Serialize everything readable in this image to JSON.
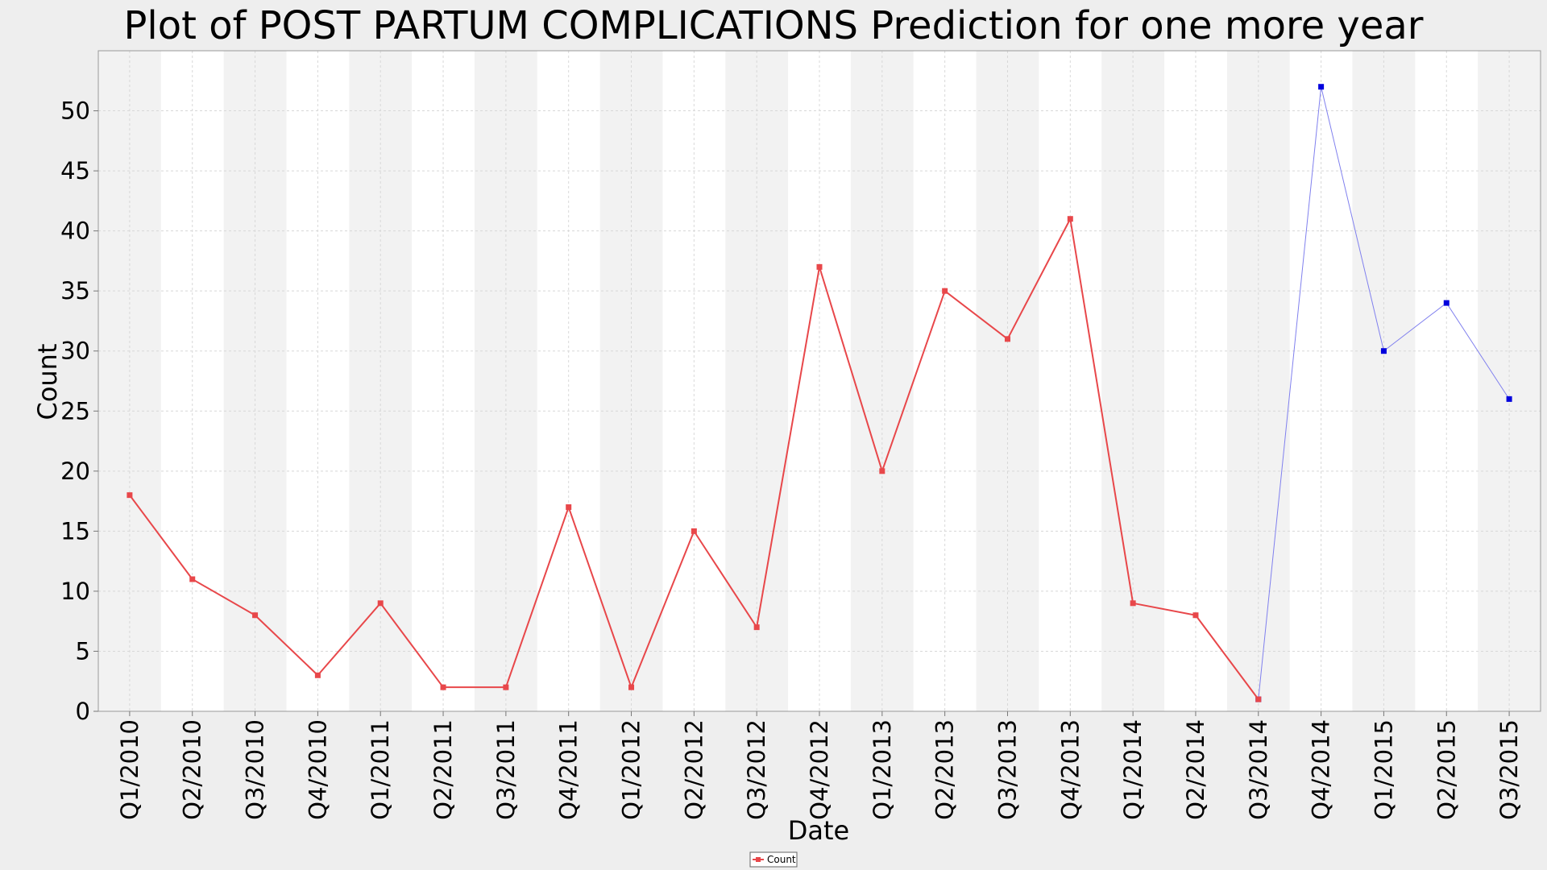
{
  "chart_data": {
    "type": "line",
    "title": "Plot of POST PARTUM COMPLICATIONS Prediction for one more year",
    "xlabel": "Date",
    "ylabel": "Count",
    "ylim": [
      0,
      55
    ],
    "yticks": [
      0,
      5,
      10,
      15,
      20,
      25,
      30,
      35,
      40,
      45,
      50
    ],
    "grid": true,
    "legend_position": "bottom-center",
    "categories": [
      "Q1/2010",
      "Q2/2010",
      "Q3/2010",
      "Q4/2010",
      "Q1/2011",
      "Q2/2011",
      "Q3/2011",
      "Q4/2011",
      "Q1/2012",
      "Q2/2012",
      "Q3/2012",
      "Q4/2012",
      "Q1/2013",
      "Q2/2013",
      "Q3/2013",
      "Q4/2013",
      "Q1/2014",
      "Q2/2014",
      "Q3/2014",
      "Q4/2014",
      "Q1/2015",
      "Q2/2015",
      "Q3/2015"
    ],
    "series": [
      {
        "name": "Count",
        "color": "#e8474a",
        "values": [
          18,
          11,
          8,
          3,
          9,
          2,
          2,
          17,
          2,
          15,
          7,
          37,
          20,
          35,
          31,
          41,
          9,
          8,
          1,
          null,
          null,
          null,
          null
        ]
      },
      {
        "color": "#0000dd",
        "values": [
          null,
          null,
          null,
          null,
          null,
          null,
          null,
          null,
          null,
          null,
          null,
          null,
          null,
          null,
          null,
          null,
          null,
          null,
          1,
          52,
          30,
          34,
          26
        ]
      }
    ],
    "colors": {
      "band_dark": "#f2f2f2",
      "band_light": "#ffffff",
      "grid": "#d8d8d8",
      "observed": "#e8474a",
      "predicted_line": "#8080ee",
      "predicted_marker": "#0000dd"
    }
  }
}
